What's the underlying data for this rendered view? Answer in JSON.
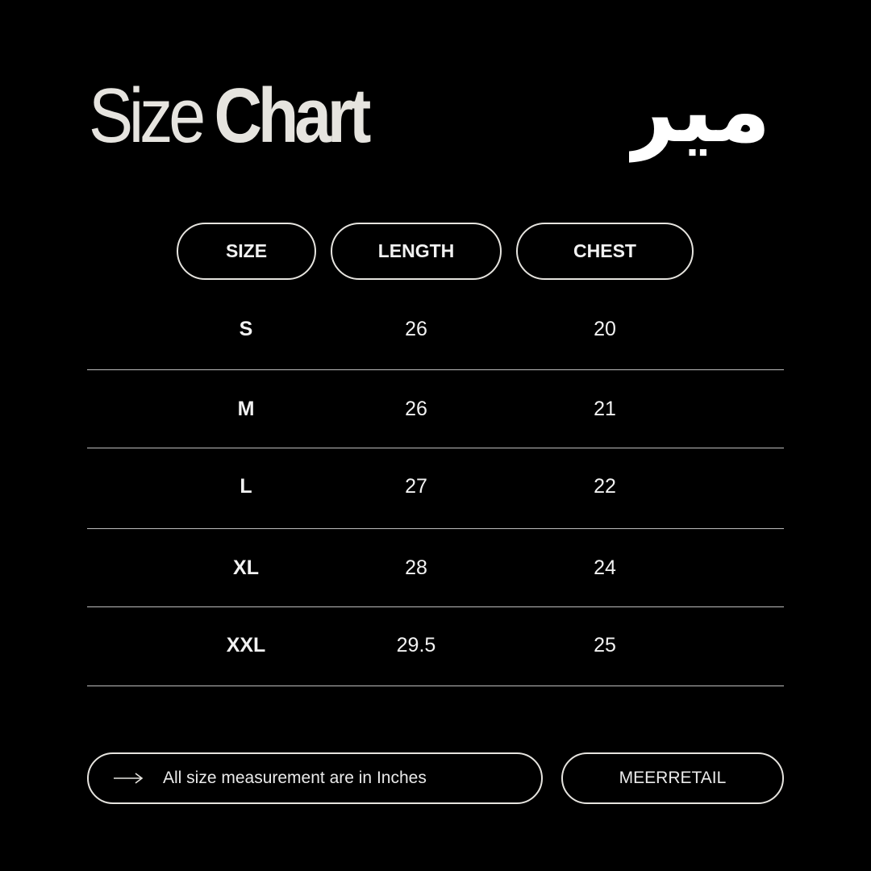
{
  "title": {
    "part1": "Size",
    "part2": "Chart"
  },
  "logo": {
    "text": "میر"
  },
  "table": {
    "headers": [
      "SIZE",
      "LENGTH",
      "CHEST"
    ],
    "rows": [
      [
        "S",
        "26",
        "20"
      ],
      [
        "M",
        "26",
        "21"
      ],
      [
        "L",
        "27",
        "22"
      ],
      [
        "XL",
        "28",
        "24"
      ],
      [
        "XXL",
        "29.5",
        "25"
      ]
    ]
  },
  "footer": {
    "note_icon": "arrow-right-icon",
    "note": "All size measurement are in Inches",
    "brand": "MEERRETAIL"
  },
  "colors": {
    "background": "#000000",
    "text": "#e6e4df"
  }
}
